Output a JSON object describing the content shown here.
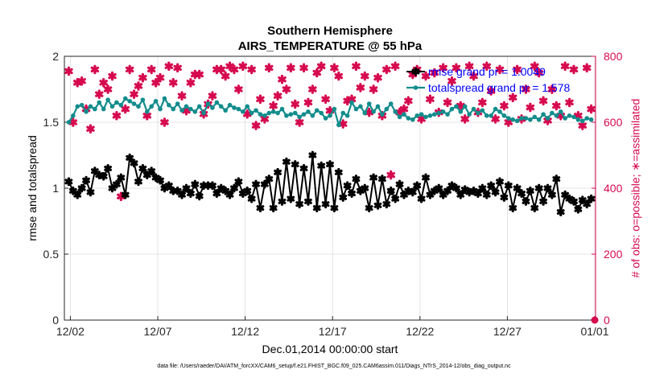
{
  "chart_data": {
    "type": "line",
    "title": "Southern Hemisphere",
    "subtitle": "AIRS_TEMPERATURE @ 55 hPa",
    "xlabel": "Dec.01,2014 00:00:00 start",
    "ylabel": "rmse and totalspread",
    "y2label": "# of obs: o=possible; ∗=assimilated",
    "footnote": "data file: /Users/raeder/DAI/ATM_forcXX/CAM6_setup/f.e21.FHIST_BGC.f09_025.CAM6assim.011/Diags_NTrS_2014-12/obs_diag_output.nc",
    "x_ticks": [
      "12/02",
      "12/07",
      "12/12",
      "12/17",
      "12/22",
      "12/27",
      "01/01"
    ],
    "y_ticks": [
      "0",
      "0.5",
      "1",
      "1.5",
      "2"
    ],
    "y2_ticks": [
      "0",
      "200",
      "400",
      "600",
      "800"
    ],
    "xlim": [
      0.75,
      31.25
    ],
    "ylim": [
      0,
      2
    ],
    "y2lim": [
      0,
      800
    ],
    "grid": true,
    "legend_position": "top-right",
    "colors": {
      "rmse": "#000000",
      "spread": "#138c8c",
      "obs": "#d6094f",
      "legend_text": "#0000ff"
    },
    "series": [
      {
        "name": "rmse grand pr = 1.0049",
        "axis": "left",
        "marker": "star",
        "x": [
          1.0,
          1.25,
          1.5,
          1.75,
          2.0,
          2.25,
          2.5,
          2.75,
          3.0,
          3.25,
          3.5,
          3.75,
          4.0,
          4.25,
          4.5,
          4.75,
          5.0,
          5.25,
          5.5,
          5.75,
          6.0,
          6.25,
          6.5,
          6.75,
          7.0,
          7.25,
          7.5,
          7.75,
          8.0,
          8.25,
          8.5,
          8.75,
          9.0,
          9.25,
          9.5,
          9.75,
          10.0,
          10.25,
          10.5,
          10.75,
          11.0,
          11.25,
          11.5,
          11.75,
          12.0,
          12.25,
          12.5,
          12.75,
          13.0,
          13.25,
          13.5,
          13.75,
          14.0,
          14.25,
          14.5,
          14.75,
          15.0,
          15.25,
          15.5,
          15.75,
          16.0,
          16.25,
          16.5,
          16.75,
          17.0,
          17.25,
          17.5,
          17.75,
          18.0,
          18.25,
          18.5,
          18.75,
          19.0,
          19.25,
          19.5,
          19.75,
          20.0,
          20.25,
          20.5,
          20.75,
          21.0,
          21.25,
          21.5,
          21.75,
          22.0,
          22.25,
          22.5,
          22.75,
          23.0,
          23.25,
          23.5,
          23.75,
          24.0,
          24.25,
          24.5,
          24.75,
          25.0,
          25.25,
          25.5,
          25.75,
          26.0,
          26.25,
          26.5,
          26.75,
          27.0,
          27.25,
          27.5,
          27.75,
          28.0,
          28.25,
          28.5,
          28.75,
          29.0,
          29.25,
          29.5,
          29.75,
          30.0,
          30.25,
          30.5,
          30.75,
          31.0
        ],
        "values": [
          1.05,
          0.98,
          0.95,
          1.0,
          1.06,
          0.97,
          1.13,
          1.1,
          1.09,
          1.15,
          1.0,
          1.03,
          1.08,
          0.95,
          1.23,
          1.19,
          1.05,
          1.15,
          1.1,
          1.13,
          1.08,
          1.06,
          1.0,
          1.02,
          0.98,
          0.98,
          0.95,
          1.0,
          0.96,
          1.03,
          0.94,
          1.02,
          1.02,
          1.02,
          0.96,
          1.0,
          0.98,
          0.95,
          1.0,
          1.05,
          0.96,
          0.98,
          0.92,
          1.03,
          0.85,
          1.03,
          1.07,
          0.85,
          1.12,
          0.9,
          1.2,
          0.92,
          1.18,
          0.88,
          1.15,
          0.9,
          1.25,
          0.85,
          1.17,
          0.88,
          1.18,
          0.85,
          1.12,
          0.93,
          1.02,
          0.96,
          1.07,
          0.98,
          1.0,
          0.85,
          1.08,
          0.87,
          1.07,
          0.88,
          0.98,
          0.92,
          1.03,
          0.95,
          0.98,
          0.97,
          1.02,
          0.92,
          1.08,
          0.95,
          0.98,
          1.0,
          0.95,
          0.98,
          1.02,
          1.0,
          0.95,
          0.99,
          0.97,
          0.98,
          0.96,
          1.0,
          0.95,
          1.02,
          0.97,
          1.05,
          0.93,
          1.02,
          0.85,
          1.0,
          0.96,
          0.9,
          0.98,
          0.85,
          1.0,
          0.9,
          1.0,
          0.95,
          1.07,
          0.82,
          0.95,
          0.92,
          0.9,
          0.84,
          0.91,
          0.88,
          0.92
        ]
      },
      {
        "name": "totalspread grand pr = 1.578",
        "axis": "left",
        "marker": "dot",
        "x": [
          1.0,
          1.25,
          1.5,
          1.75,
          2.0,
          2.25,
          2.5,
          2.75,
          3.0,
          3.25,
          3.5,
          3.75,
          4.0,
          4.25,
          4.5,
          4.75,
          5.0,
          5.25,
          5.5,
          5.75,
          6.0,
          6.25,
          6.5,
          6.75,
          7.0,
          7.25,
          7.5,
          7.75,
          8.0,
          8.25,
          8.5,
          8.75,
          9.0,
          9.25,
          9.5,
          9.75,
          10.0,
          10.25,
          10.5,
          10.75,
          11.0,
          11.25,
          11.5,
          11.75,
          12.0,
          12.25,
          12.5,
          12.75,
          13.0,
          13.25,
          13.5,
          13.75,
          14.0,
          14.25,
          14.5,
          14.75,
          15.0,
          15.25,
          15.5,
          15.75,
          16.0,
          16.25,
          16.5,
          16.75,
          17.0,
          17.25,
          17.5,
          17.75,
          18.0,
          18.25,
          18.5,
          18.75,
          19.0,
          19.25,
          19.5,
          19.75,
          20.0,
          20.25,
          20.5,
          20.75,
          21.0,
          21.25,
          21.5,
          21.75,
          22.0,
          22.25,
          22.5,
          22.75,
          23.0,
          23.25,
          23.5,
          23.75,
          24.0,
          24.25,
          24.5,
          24.75,
          25.0,
          25.25,
          25.5,
          25.75,
          26.0,
          26.25,
          26.5,
          26.75,
          27.0,
          27.25,
          27.5,
          27.75,
          28.0,
          28.25,
          28.5,
          28.75,
          29.0,
          29.25,
          29.5,
          29.75,
          30.0,
          30.25,
          30.5,
          30.75,
          31.0
        ],
        "values": [
          1.5,
          1.55,
          1.62,
          1.63,
          1.58,
          1.62,
          1.6,
          1.65,
          1.6,
          1.67,
          1.62,
          1.65,
          1.63,
          1.68,
          1.66,
          1.64,
          1.62,
          1.67,
          1.58,
          1.62,
          1.66,
          1.6,
          1.68,
          1.63,
          1.6,
          1.64,
          1.59,
          1.62,
          1.6,
          1.58,
          1.62,
          1.57,
          1.64,
          1.61,
          1.65,
          1.62,
          1.59,
          1.63,
          1.61,
          1.6,
          1.58,
          1.62,
          1.57,
          1.59,
          1.56,
          1.55,
          1.57,
          1.58,
          1.57,
          1.6,
          1.55,
          1.56,
          1.57,
          1.54,
          1.56,
          1.58,
          1.55,
          1.59,
          1.57,
          1.53,
          1.55,
          1.6,
          1.48,
          1.57,
          1.55,
          1.65,
          1.6,
          1.62,
          1.57,
          1.64,
          1.58,
          1.62,
          1.56,
          1.6,
          1.64,
          1.58,
          1.54,
          1.56,
          1.53,
          1.52,
          1.55,
          1.56,
          1.54,
          1.55,
          1.56,
          1.57,
          1.58,
          1.56,
          1.6,
          1.62,
          1.58,
          1.62,
          1.56,
          1.6,
          1.57,
          1.59,
          1.55,
          1.55,
          1.6,
          1.58,
          1.55,
          1.53,
          1.52,
          1.51,
          1.53,
          1.53,
          1.52,
          1.54,
          1.52,
          1.56,
          1.53,
          1.57,
          1.55,
          1.58,
          1.53,
          1.55,
          1.54,
          1.52,
          1.51,
          1.53,
          1.52
        ]
      },
      {
        "name": "obs possible",
        "axis": "right",
        "marker": "circle",
        "x": [
          31.25
        ],
        "values": [
          0
        ]
      },
      {
        "name": "obs assimilated",
        "axis": "right",
        "marker": "star",
        "x": [
          1.0,
          1.25,
          1.5,
          1.75,
          2.0,
          2.25,
          2.5,
          2.75,
          3.0,
          3.25,
          3.5,
          3.75,
          4.0,
          4.25,
          4.5,
          4.75,
          5.0,
          5.25,
          5.5,
          5.75,
          6.0,
          6.25,
          6.5,
          6.75,
          7.0,
          7.25,
          7.5,
          7.75,
          8.0,
          8.25,
          8.5,
          8.75,
          9.0,
          9.25,
          9.5,
          9.75,
          10.0,
          10.25,
          10.5,
          10.75,
          11.0,
          11.25,
          11.5,
          11.75,
          12.0,
          12.25,
          12.5,
          12.75,
          13.0,
          13.25,
          13.5,
          13.75,
          14.0,
          14.25,
          14.5,
          14.75,
          15.0,
          15.25,
          15.5,
          15.75,
          16.0,
          16.25,
          16.5,
          16.75,
          17.0,
          17.25,
          17.5,
          17.75,
          18.0,
          18.25,
          18.5,
          18.75,
          19.0,
          19.25,
          19.5,
          19.75,
          20.0,
          20.25,
          20.5,
          20.75,
          21.0,
          21.25,
          21.5,
          21.75,
          22.0,
          22.25,
          22.5,
          22.75,
          23.0,
          23.25,
          23.5,
          23.75,
          24.0,
          24.25,
          24.5,
          24.75,
          25.0,
          25.25,
          25.5,
          25.75,
          26.0,
          26.25,
          26.5,
          26.75,
          27.0,
          27.25,
          27.5,
          27.75,
          28.0,
          28.25,
          28.5,
          28.75,
          29.0,
          29.25,
          29.5,
          29.75,
          30.0,
          30.25,
          30.5,
          30.75,
          31.0
        ],
        "values": [
          755,
          600,
          720,
          725,
          640,
          580,
          760,
          685,
          720,
          700,
          740,
          620,
          375,
          640,
          760,
          685,
          710,
          735,
          620,
          760,
          720,
          735,
          600,
          770,
          720,
          765,
          680,
          635,
          720,
          745,
          745,
          625,
          655,
          680,
          760,
          760,
          740,
          770,
          760,
          700,
          770,
          625,
          760,
          590,
          670,
          610,
          765,
          650,
          680,
          730,
          700,
          765,
          655,
          600,
          765,
          660,
          700,
          750,
          770,
          670,
          635,
          765,
          740,
          595,
          665,
          670,
          770,
          705,
          740,
          630,
          700,
          735,
          620,
          760,
          440,
          770,
          630,
          640,
          665,
          745,
          760,
          610,
          740,
          670,
          750,
          630,
          765,
          660,
          725,
          765,
          650,
          610,
          770,
          740,
          630,
          660,
          770,
          695,
          610,
          760,
          650,
          600,
          675,
          760,
          610,
          700,
          645,
          770,
          750,
          665,
          605,
          700,
          650,
          620,
          770,
          660,
          760,
          620,
          590,
          765,
          640
        ]
      }
    ]
  }
}
